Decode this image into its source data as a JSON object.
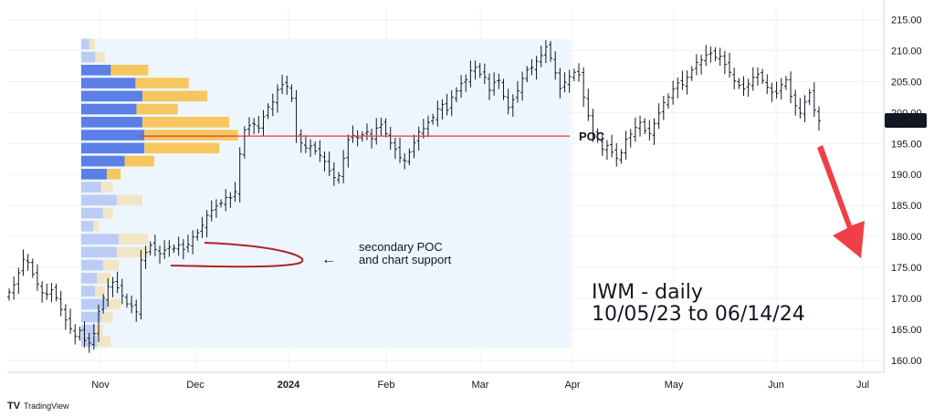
{
  "chart_data": {
    "type": "ohlc",
    "title": "IWM - daily",
    "subtitle": "10/05/23 to 06/14/24",
    "last_price_label": "198.73",
    "x_tick_labels": [
      "Nov",
      "Dec",
      "2024",
      "Feb",
      "Mar",
      "Apr",
      "May",
      "Jun",
      "Jul"
    ],
    "y_ticks": [
      160,
      165,
      170,
      175,
      180,
      185,
      190,
      195,
      200,
      205,
      210,
      215
    ],
    "y_tick_labels": [
      "160.00",
      "165.00",
      "170.00",
      "175.00",
      "180.00",
      "185.00",
      "190.00",
      "195.00",
      "200.00",
      "205.00",
      "210.00",
      "215.00"
    ],
    "ylim": [
      158.5,
      217
    ],
    "poc_label": "POC",
    "poc_value": 196.2,
    "annotation_text_line1": "secondary POC",
    "annotation_text_line2": "and chart support",
    "arrow_glyph": "←",
    "branding": "TradingView",
    "colors": {
      "bars": "#131722",
      "poc_line": "#e53935",
      "arrow": "#ef4047",
      "curve": "#b0232a",
      "volume_up": "#5b7fe6",
      "volume_down": "#f6c75e",
      "range_fill": "#eef6fd",
      "last_price_bg": "#131722"
    },
    "closes": [
      171.0,
      172.2,
      174.1,
      176.3,
      175.8,
      173.9,
      172.3,
      170.9,
      170.6,
      171.4,
      170.1,
      168.2,
      166.5,
      165.1,
      163.9,
      164.8,
      163.2,
      162.8,
      164.3,
      167.9,
      170.1,
      171.9,
      172.6,
      171.7,
      170.4,
      169.1,
      168.7,
      167.8,
      176.2,
      177.4,
      178.6,
      177.9,
      177.2,
      177.8,
      178.3,
      178.1,
      178.6,
      177.9,
      178.7,
      179.9,
      180.6,
      181.8,
      183.4,
      184.2,
      184.9,
      185.4,
      186.3,
      186.2,
      187.2,
      193.3,
      197.2,
      197.9,
      198.1,
      197.5,
      199.3,
      200.9,
      201.7,
      203.7,
      204.5,
      204.2,
      202.3,
      196.2,
      195.1,
      194.3,
      194.6,
      193.8,
      193.1,
      192.1,
      190.6,
      189.5,
      189.8,
      192.6,
      195.6,
      196.3,
      195.9,
      196.4,
      196.9,
      195.8,
      197.5,
      198.1,
      196.6,
      195.1,
      194.1,
      192.7,
      192.2,
      193.6,
      195.1,
      196.9,
      197.4,
      198.4,
      199.2,
      200.6,
      201.3,
      200.4,
      202.5,
      203.5,
      204.7,
      205.3,
      206.8,
      207.3,
      206.2,
      205.7,
      203.6,
      204.9,
      205.2,
      202.6,
      200.8,
      202.1,
      203.5,
      205.5,
      206.9,
      207.3,
      208.3,
      209.2,
      210.6,
      208.8,
      206.4,
      203.9,
      204.9,
      205.8,
      206.5,
      206.1,
      202.5,
      199.5,
      196.6,
      195.7,
      194.1,
      194.7,
      193.6,
      192.6,
      193.5,
      195.7,
      196.5,
      197.6,
      198.4,
      197.1,
      196.6,
      198.2,
      199.9,
      201.6,
      202.5,
      203.8,
      204.8,
      204.5,
      205.7,
      206.9,
      208.1,
      208.5,
      209.3,
      209.6,
      208.9,
      209.1,
      207.8,
      206.5,
      205.1,
      204.4,
      203.8,
      204.6,
      205.7,
      206.2,
      205.2,
      204.1,
      203.3,
      203.1,
      204.5,
      205.3,
      202.6,
      201.1,
      199.9,
      201.7,
      203.2,
      200.4,
      198.7
    ],
    "volume_profile": [
      {
        "price": 211.0,
        "up": 8,
        "down": 6
      },
      {
        "price": 208.9,
        "up": 14,
        "down": 10
      },
      {
        "price": 206.8,
        "up": 30,
        "down": 38
      },
      {
        "price": 204.7,
        "up": 55,
        "down": 54
      },
      {
        "price": 202.6,
        "up": 62,
        "down": 66
      },
      {
        "price": 200.5,
        "up": 56,
        "down": 42
      },
      {
        "price": 198.4,
        "up": 62,
        "down": 88
      },
      {
        "price": 196.3,
        "up": 64,
        "down": 95
      },
      {
        "price": 194.2,
        "up": 64,
        "down": 76
      },
      {
        "price": 192.1,
        "up": 44,
        "down": 30
      },
      {
        "price": 190.0,
        "up": 26,
        "down": 14
      },
      {
        "price": 187.9,
        "up": 20,
        "down": 12
      },
      {
        "price": 185.8,
        "up": 36,
        "down": 26
      },
      {
        "price": 183.7,
        "up": 22,
        "down": 10
      },
      {
        "price": 181.6,
        "up": 12,
        "down": 6
      },
      {
        "price": 179.5,
        "up": 38,
        "down": 30
      },
      {
        "price": 177.4,
        "up": 36,
        "down": 32
      },
      {
        "price": 175.3,
        "up": 22,
        "down": 16
      },
      {
        "price": 173.2,
        "up": 16,
        "down": 14
      },
      {
        "price": 171.1,
        "up": 14,
        "down": 10
      },
      {
        "price": 169.0,
        "up": 26,
        "down": 14
      },
      {
        "price": 166.9,
        "up": 20,
        "down": 12
      },
      {
        "price": 164.8,
        "up": 14,
        "down": 8
      },
      {
        "price": 163.0,
        "up": 16,
        "down": 14
      }
    ]
  }
}
